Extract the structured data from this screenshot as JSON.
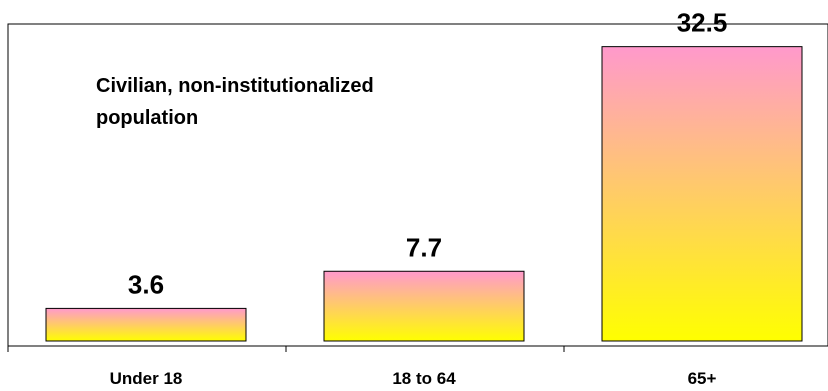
{
  "chart_data": {
    "type": "bar",
    "annotation": [
      "Civilian, non-institutionalized",
      "population"
    ],
    "categories": [
      "Under 18",
      "18 to 64",
      "65+"
    ],
    "series": [
      {
        "values": [
          3.6,
          7.7,
          32.5
        ],
        "labels": [
          "3.6",
          "7.7",
          "32.5"
        ]
      }
    ],
    "ylim": [
      0,
      35
    ],
    "grid": false,
    "legend": "none",
    "colors": {
      "bar_top": "#ff99cc",
      "bar_bottom": "#ffff00",
      "outline": "#000000"
    }
  }
}
